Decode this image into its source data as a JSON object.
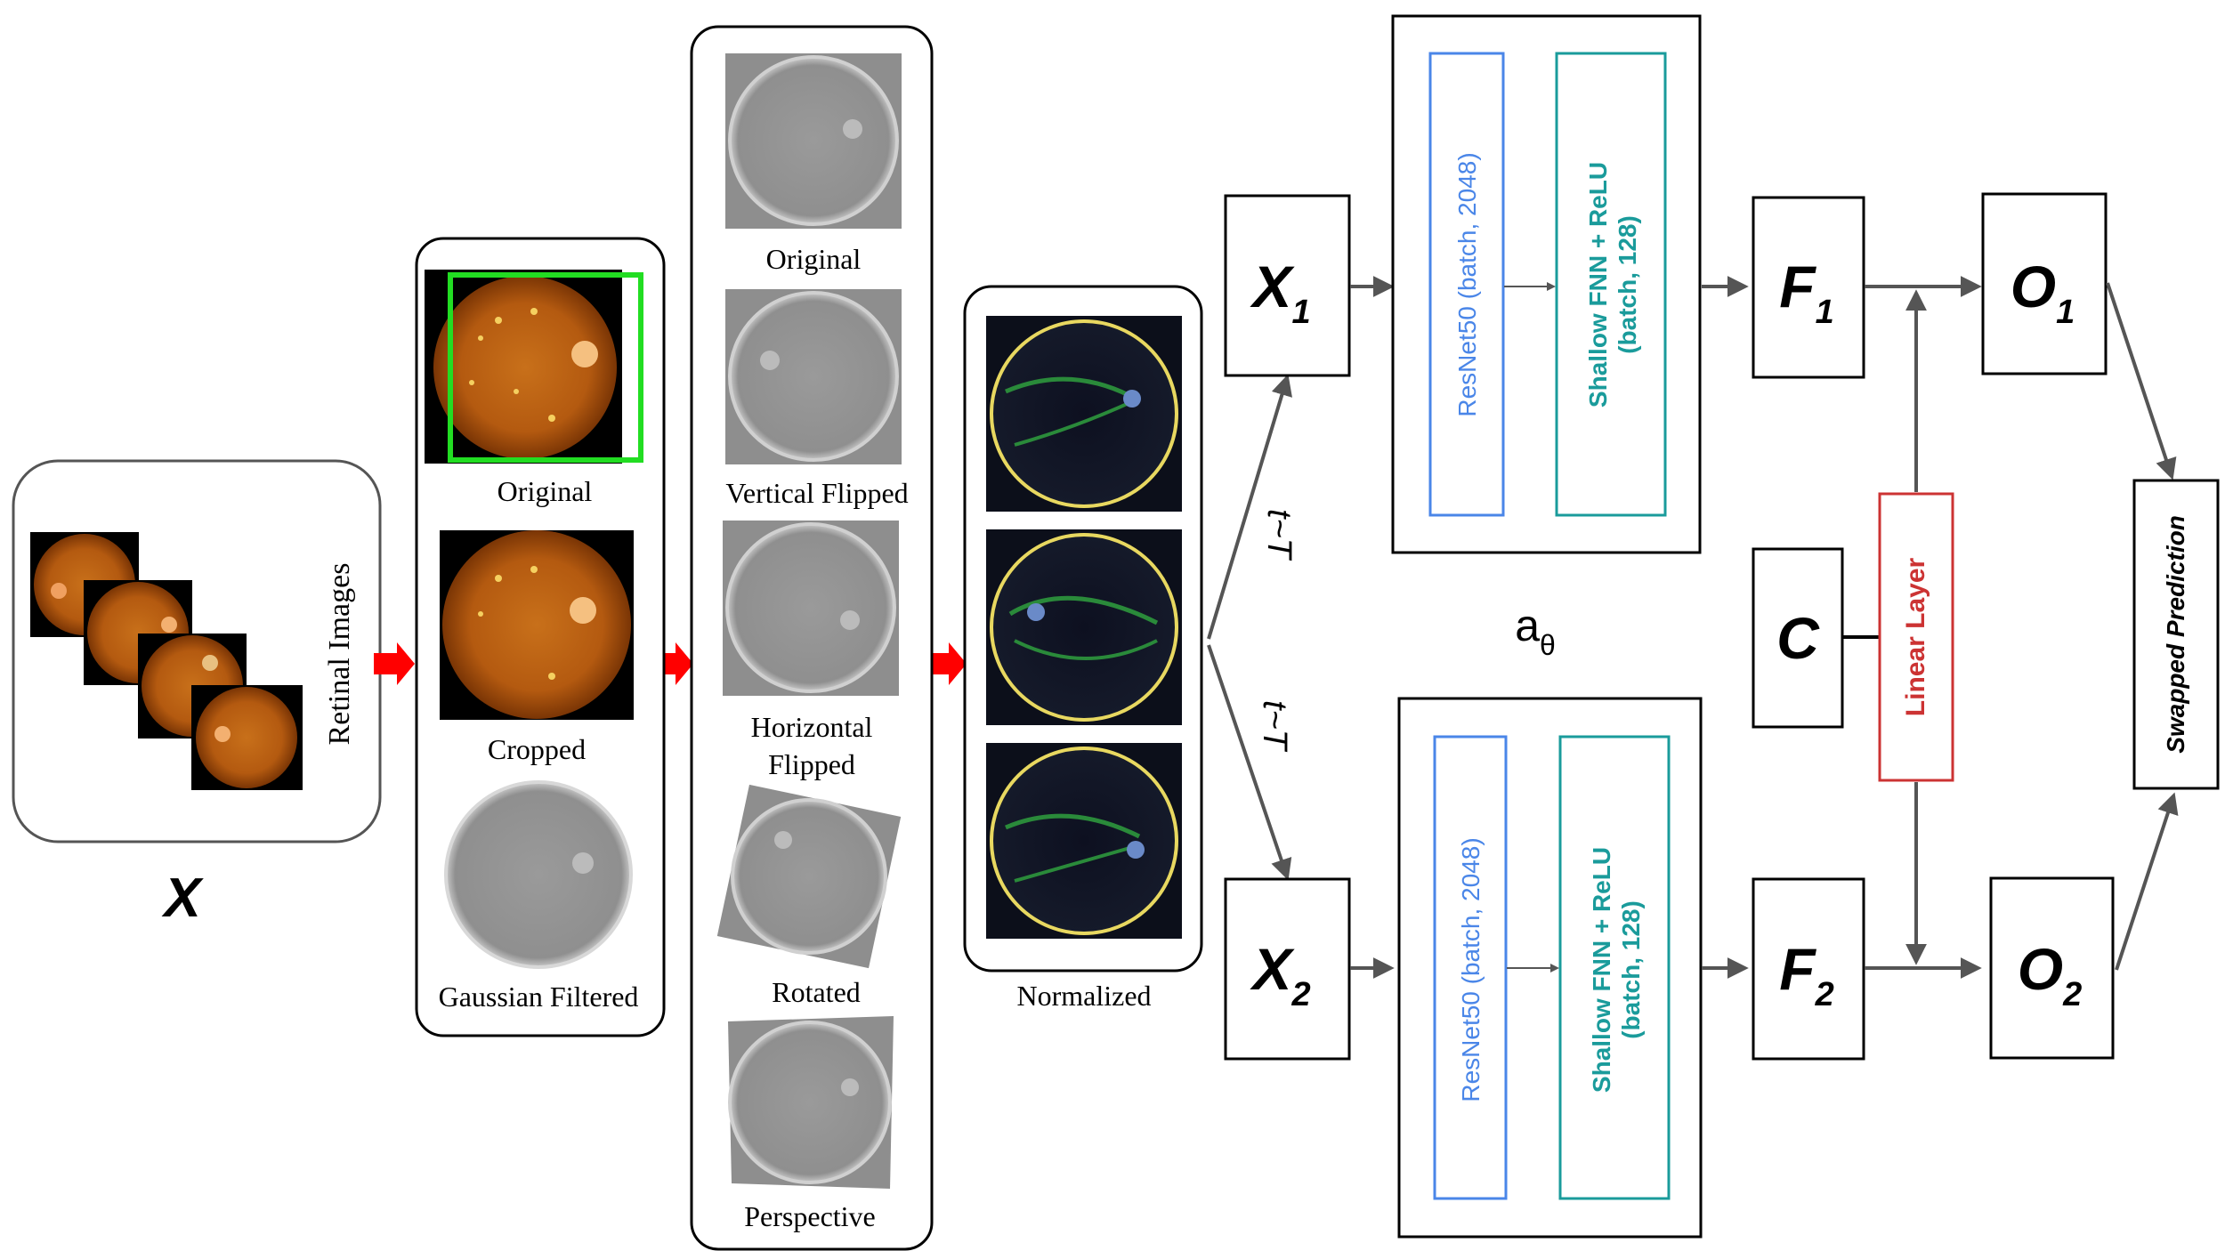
{
  "input": {
    "side_label": "Retinal Images",
    "var_label": "X"
  },
  "stage1": {
    "items": [
      "Original",
      "Cropped",
      "Gaussian Filtered"
    ]
  },
  "stage2": {
    "items": [
      "Original",
      "Vertical Flipped",
      "Horizontal",
      "Flipped",
      "Rotated",
      "Perspective"
    ]
  },
  "stage3": {
    "label": "Normalized"
  },
  "views": {
    "x1_main": "X",
    "x1_sub": "1",
    "x2_main": "X",
    "x2_sub": "2",
    "transform_top": "t~T",
    "transform_bottom": "t~T"
  },
  "encoder": {
    "resnet_label": "ResNet50 (batch, 2048)",
    "fnn_label_line1": "Shallow FNN + ReLU",
    "fnn_label_line2": "(batch, 128)",
    "theta_main": "a",
    "theta_sub": "θ"
  },
  "features": {
    "f1_main": "F",
    "f1_sub": "1",
    "f2_main": "F",
    "f2_sub": "2"
  },
  "outputs": {
    "o1_main": "O",
    "o1_sub": "1",
    "o2_main": "O",
    "o2_sub": "2",
    "c_label": "C",
    "linear_label": "Linear Layer",
    "swapped_label": "Swapped Prediction"
  },
  "colors": {
    "resnet": "#4a86e8",
    "fnn": "#1a9b9b",
    "linear": "#cc3333",
    "red_arrow": "#ff0000",
    "gray_arrow": "#555555",
    "crop_box": "#22dd22"
  }
}
